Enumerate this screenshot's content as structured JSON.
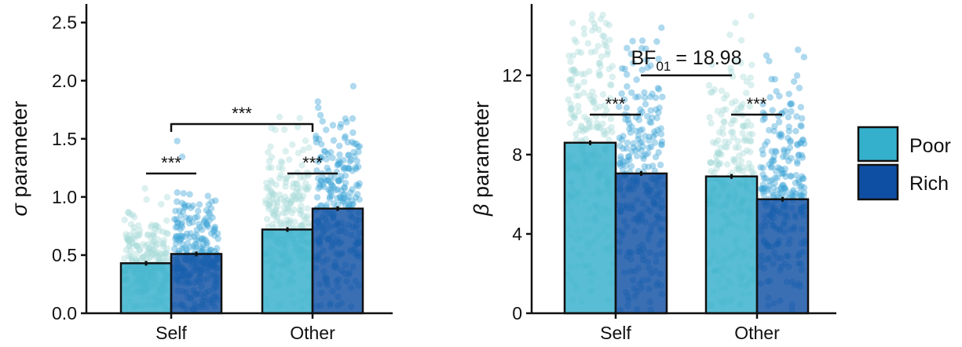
{
  "chart_data": [
    {
      "type": "bar",
      "ylabel_symbol": "σ",
      "ylabel": "parameter",
      "categories": [
        "Self",
        "Other"
      ],
      "ylim": [
        0,
        2.66
      ],
      "yticks": [
        "0.0",
        "0.5",
        "1.0",
        "1.5",
        "2.0",
        "2.5"
      ],
      "series": [
        {
          "name": "Poor",
          "values": [
            0.43,
            0.72
          ]
        },
        {
          "name": "Rich",
          "values": [
            0.51,
            0.9
          ]
        }
      ],
      "annotations": {
        "within_self": "***",
        "within_other": "***",
        "between": "***"
      }
    },
    {
      "type": "bar",
      "ylabel_symbol": "β",
      "ylabel": "parameter",
      "categories": [
        "Self",
        "Other"
      ],
      "ylim": [
        0,
        15.6
      ],
      "yticks": [
        "0",
        "4",
        "8",
        "12"
      ],
      "series": [
        {
          "name": "Poor",
          "values": [
            8.6,
            6.9
          ]
        },
        {
          "name": "Rich",
          "values": [
            7.05,
            5.75
          ]
        }
      ],
      "annotations": {
        "within_self": "***",
        "within_other": "***",
        "between_bf_label": "BF",
        "between_bf_sub": "01",
        "between_bf_value": "= 18.98"
      }
    }
  ],
  "legend": {
    "items": [
      {
        "label": "Poor",
        "color": "#35b0cc"
      },
      {
        "label": "Rich",
        "color": "#0f4fa3"
      }
    ],
    "position": "right"
  },
  "colors": {
    "poor_bar": "#35b0cc",
    "rich_bar": "#0f4fa3",
    "poor_point": "#a9dcd8",
    "rich_point": "#3fa4d6"
  }
}
